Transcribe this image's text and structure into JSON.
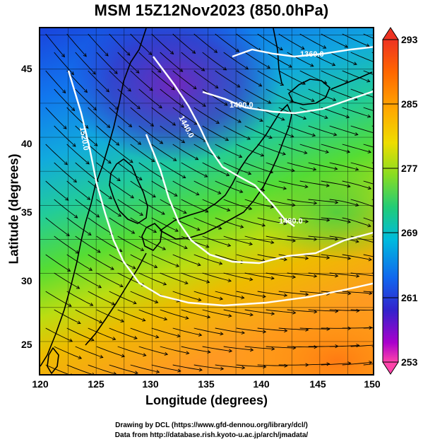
{
  "title": "MSM 15Z12Nov2023 (850.0hPa)",
  "x_axis": {
    "label": "Longitude (degrees)",
    "range": [
      120,
      150
    ],
    "ticks": [
      "120",
      "125",
      "130",
      "135",
      "140",
      "145",
      "150"
    ]
  },
  "y_axis": {
    "label": "Latitude  (degrees)",
    "range": [
      22.4,
      48
    ],
    "ticks": [
      "25",
      "30",
      "35",
      "40",
      "45"
    ]
  },
  "colorbar": {
    "ticks": [
      "293",
      "285",
      "277",
      "269",
      "261",
      "253"
    ],
    "range": [
      253,
      293
    ],
    "colors": [
      "#ff44aa",
      "#aa00cc",
      "#3322cc",
      "#1166ee",
      "#00bbdd",
      "#22cc77",
      "#88dd22",
      "#eedd00",
      "#ffaa00",
      "#ff6600",
      "#ee3322"
    ]
  },
  "contours": [
    {
      "label": "1360.0"
    },
    {
      "label": "1400.0"
    },
    {
      "label": "1440.0"
    },
    {
      "label": "1480.0"
    },
    {
      "label": "1520.0"
    }
  ],
  "credits": {
    "line1": "Drawing by DCL (https://www.gfd-dennou.org/library/dcl/)",
    "line2": "Data from http://database.rish.kyoto-u.ac.jp/arch/jmadata/"
  }
}
